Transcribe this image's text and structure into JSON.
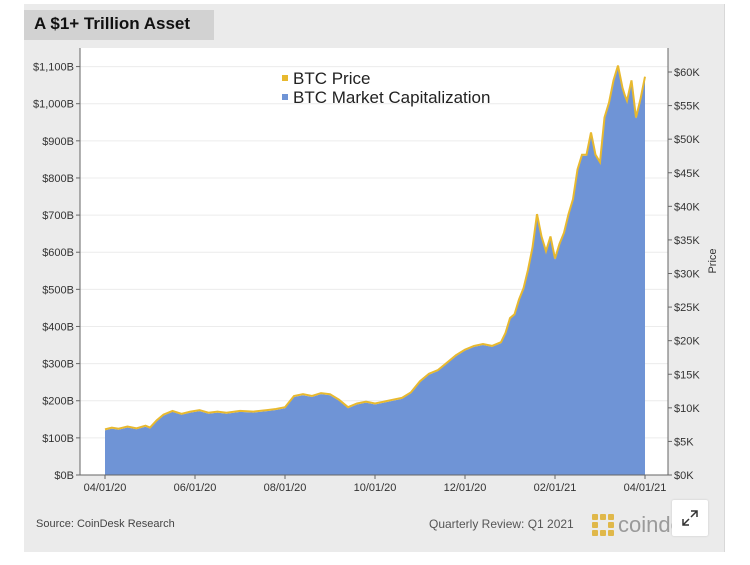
{
  "header": {
    "title": "A $1+ Trillion Asset"
  },
  "footer": {
    "source": "Source: CoinDesk Research",
    "review": "Quarterly Review: Q1 2021",
    "logo_text": "coindesk"
  },
  "controls": {
    "expand_icon": "expand-icon"
  },
  "colors": {
    "market_cap": "#6f94d6",
    "price": "#e8b92f",
    "plot_bg": "#ffffff",
    "panel_bg": "#ebebeb"
  },
  "chart_data": {
    "type": "area",
    "title": "A $1+ Trillion Asset",
    "xlabel": "",
    "ylabel": "",
    "y2label": "Price",
    "x_ticks": [
      "04/01/20",
      "06/01/20",
      "08/01/20",
      "10/01/20",
      "12/01/20",
      "02/01/21",
      "04/01/21"
    ],
    "y_ticks": [
      "$0B",
      "$100B",
      "$200B",
      "$300B",
      "$400B",
      "$500B",
      "$600B",
      "$700B",
      "$800B",
      "$900B",
      "$1,000B",
      "$1,100B"
    ],
    "y2_ticks": [
      "$0K",
      "$5K",
      "$10K",
      "$15K",
      "$20K",
      "$25K",
      "$30K",
      "$35K",
      "$40K",
      "$45K",
      "$50K",
      "$55K",
      "$60K"
    ],
    "ylim": [
      0,
      1150
    ],
    "y2lim": [
      0,
      60000
    ],
    "xlim_months": [
      0,
      12
    ],
    "legend": [
      "BTC Price",
      "BTC Market Capitalization"
    ],
    "legend_position": "top-center",
    "series": [
      {
        "name": "BTC Market Capitalization",
        "unit": "$B",
        "x_months": [
          0.0,
          0.15,
          0.3,
          0.5,
          0.7,
          0.9,
          1.0,
          1.15,
          1.3,
          1.5,
          1.7,
          1.9,
          2.1,
          2.3,
          2.5,
          2.7,
          3.0,
          3.3,
          3.6,
          3.8,
          4.0,
          4.2,
          4.4,
          4.6,
          4.8,
          5.0,
          5.2,
          5.4,
          5.6,
          5.8,
          6.0,
          6.2,
          6.4,
          6.6,
          6.8,
          7.0,
          7.2,
          7.4,
          7.6,
          7.8,
          8.0,
          8.2,
          8.4,
          8.6,
          8.8,
          8.9,
          9.0,
          9.1,
          9.2,
          9.3,
          9.4,
          9.5,
          9.6,
          9.7,
          9.8,
          9.9,
          10.0,
          10.1,
          10.2,
          10.3,
          10.4,
          10.5,
          10.6,
          10.7,
          10.8,
          10.9,
          11.0,
          11.1,
          11.2,
          11.3,
          11.4,
          11.5,
          11.55,
          11.6,
          11.7,
          11.8,
          11.9,
          12.0
        ],
        "values": [
          120,
          125,
          122,
          128,
          123,
          130,
          125,
          145,
          160,
          170,
          162,
          168,
          172,
          165,
          168,
          165,
          170,
          168,
          172,
          175,
          180,
          210,
          215,
          210,
          218,
          215,
          200,
          180,
          190,
          195,
          190,
          195,
          200,
          205,
          220,
          250,
          270,
          280,
          300,
          320,
          335,
          345,
          350,
          345,
          355,
          380,
          420,
          430,
          470,
          500,
          550,
          610,
          700,
          640,
          600,
          640,
          580,
          620,
          650,
          700,
          740,
          820,
          860,
          860,
          920,
          860,
          840,
          960,
          1000,
          1060,
          1100,
          1040,
          1020,
          1005,
          1060,
          960,
          1010,
          1070
        ]
      },
      {
        "name": "BTC Price",
        "unit": "$",
        "values_note": "tracks market capitalization (price axis scaled to the right axis)"
      }
    ]
  }
}
